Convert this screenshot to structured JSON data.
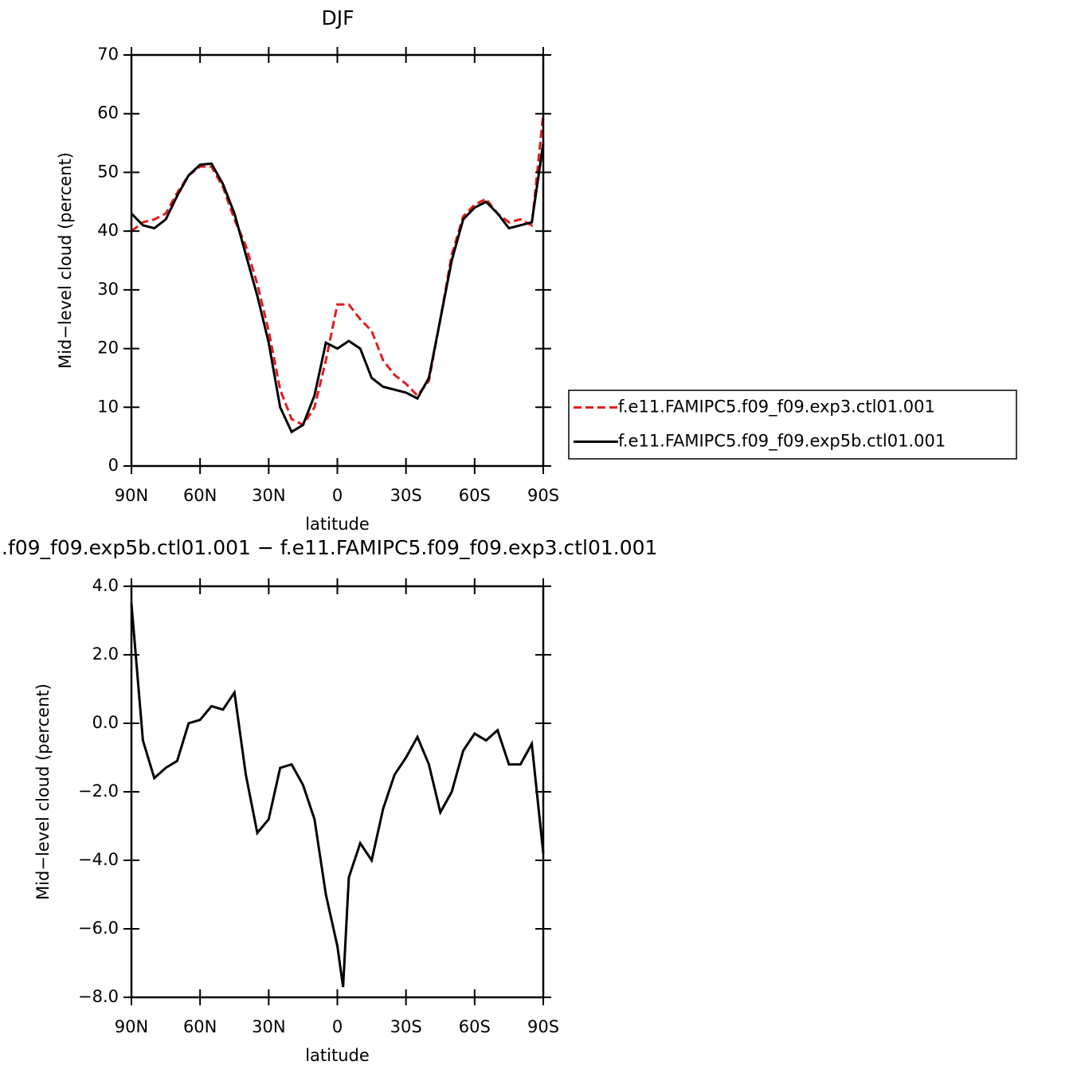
{
  "chart_data": [
    {
      "type": "line",
      "title": "DJF",
      "xlabel": "latitude",
      "ylabel": "Mid−level cloud (percent)",
      "x": [
        90,
        85,
        80,
        75,
        70,
        65,
        60,
        55,
        50,
        45,
        40,
        35,
        30,
        25,
        20,
        15,
        10,
        5,
        0,
        -5,
        -10,
        -15,
        -20,
        -25,
        -30,
        -35,
        -40,
        -45,
        -50,
        -55,
        -60,
        -65,
        -70,
        -75,
        -80,
        -85,
        -90
      ],
      "xlim": [
        90,
        -90
      ],
      "xticks": [
        {
          "value": 90,
          "label": "90N"
        },
        {
          "value": 60,
          "label": "60N"
        },
        {
          "value": 30,
          "label": "30N"
        },
        0,
        {
          "value": -30,
          "label": "30S"
        },
        {
          "value": -60,
          "label": "60S"
        },
        {
          "value": -90,
          "label": "90S"
        }
      ],
      "ylim": [
        0,
        70
      ],
      "yticks": [
        0,
        10,
        20,
        30,
        40,
        50,
        60,
        70
      ],
      "legend": "right",
      "series": [
        {
          "name": "f.e11.FAMIPC5.f09_f09.exp3.ctl01.001",
          "color": "#e41a1c",
          "dash": true,
          "values": [
            40,
            41.5,
            42,
            43,
            46.5,
            49.5,
            51,
            51,
            47.5,
            42,
            37.5,
            31,
            23,
            13,
            8,
            7,
            10,
            18,
            27.5,
            27.5,
            25,
            23,
            18,
            15.5,
            14,
            12,
            14.5,
            25,
            36,
            42.5,
            44.5,
            45.5,
            43,
            41.5,
            42,
            41,
            60
          ]
        },
        {
          "name": "f.e11.FAMIPC5.f09_f09.exp5b.ctl01.001",
          "color": "#000000",
          "dash": false,
          "values": [
            43,
            41,
            40.5,
            42,
            46,
            49.5,
            51.3,
            51.5,
            48,
            43,
            36,
            29,
            21,
            10,
            5.8,
            7,
            12,
            21,
            20,
            21.3,
            20,
            15,
            13.5,
            13,
            12.5,
            11.5,
            15,
            25,
            35,
            42,
            44,
            45,
            43,
            40.5,
            41,
            41.5,
            55
          ]
        }
      ]
    },
    {
      "type": "line",
      "title": ".f09_f09.exp5b.ctl01.001  −  f.e11.FAMIPC5.f09_f09.exp3.ctl01.001",
      "xlabel": "latitude",
      "ylabel": "Mid−level cloud (percent)",
      "x": [
        90,
        85,
        80,
        75,
        70,
        65,
        60,
        55,
        50,
        45,
        40,
        35,
        30,
        25,
        20,
        15,
        10,
        5,
        0,
        -2.5,
        -5,
        -10,
        -15,
        -20,
        -25,
        -30,
        -35,
        -40,
        -45,
        -50,
        -55,
        -60,
        -65,
        -70,
        -75,
        -80,
        -85,
        -90
      ],
      "xlim": [
        90,
        -90
      ],
      "xticks": [
        {
          "value": 90,
          "label": "90N"
        },
        {
          "value": 60,
          "label": "60N"
        },
        {
          "value": 30,
          "label": "30N"
        },
        0,
        {
          "value": -30,
          "label": "30S"
        },
        {
          "value": -60,
          "label": "60S"
        },
        {
          "value": -90,
          "label": "90S"
        }
      ],
      "ylim": [
        -8,
        4
      ],
      "yticks": [
        {
          "value": -8,
          "label": "−8.0"
        },
        {
          "value": -6,
          "label": "−6.0"
        },
        {
          "value": -4,
          "label": "−4.0"
        },
        {
          "value": -2,
          "label": "−2.0"
        },
        {
          "value": 0,
          "label": "0.0"
        },
        {
          "value": 2,
          "label": "2.0"
        },
        {
          "value": 4,
          "label": "4.0"
        }
      ],
      "series": [
        {
          "color": "#000000",
          "dash": false,
          "values": [
            3.5,
            -0.5,
            -1.6,
            -1.3,
            -1.1,
            0,
            0.1,
            0.5,
            0.4,
            0.9,
            -1.5,
            -3.2,
            -2.8,
            -1.3,
            -1.2,
            -1.8,
            -2.8,
            -5,
            -6.5,
            -7.7,
            -4.5,
            -3.5,
            -4,
            -2.5,
            -1.5,
            -1,
            -0.4,
            -1.2,
            -2.6,
            -2,
            -0.8,
            -0.3,
            -0.5,
            -0.2,
            -1.2,
            -1.2,
            -0.6,
            -3.8
          ]
        }
      ]
    }
  ]
}
